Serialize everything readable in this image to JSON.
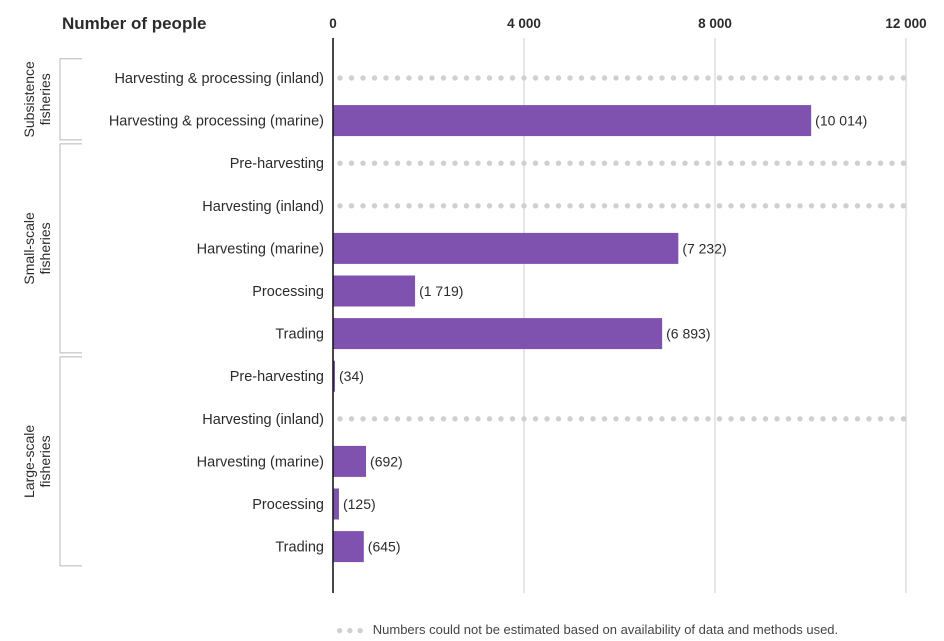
{
  "chart_data": {
    "type": "bar",
    "orientation": "horizontal",
    "x_axis_title": "Number of people",
    "x_ticks": [
      0,
      4000,
      8000,
      12000
    ],
    "x_tick_labels": [
      "0",
      "4 000",
      "8 000",
      "12 000"
    ],
    "xlim": [
      0,
      12000
    ],
    "grid": true,
    "bar_color": "#7E52AE",
    "missing_color": "#D0D0D0",
    "groups": [
      {
        "label": [
          "Subsistence",
          "fisheries"
        ],
        "items": [
          {
            "category": "Harvesting & processing (inland)",
            "value": null,
            "value_label": ""
          },
          {
            "category": "Harvesting & processing (marine)",
            "value": 10014,
            "value_label": "(10 014)"
          }
        ]
      },
      {
        "label": [
          "Small-scale",
          "fisheries"
        ],
        "items": [
          {
            "category": "Pre-harvesting",
            "value": null,
            "value_label": ""
          },
          {
            "category": "Harvesting (inland)",
            "value": null,
            "value_label": ""
          },
          {
            "category": "Harvesting (marine)",
            "value": 7232,
            "value_label": "(7 232)"
          },
          {
            "category": "Processing",
            "value": 1719,
            "value_label": "(1 719)"
          },
          {
            "category": "Trading",
            "value": 6893,
            "value_label": "(6 893)"
          }
        ]
      },
      {
        "label": [
          "Large-scale",
          "fisheries"
        ],
        "items": [
          {
            "category": "Pre-harvesting",
            "value": 34,
            "value_label": "(34)"
          },
          {
            "category": "Harvesting (inland)",
            "value": null,
            "value_label": ""
          },
          {
            "category": "Harvesting (marine)",
            "value": 692,
            "value_label": "(692)"
          },
          {
            "category": "Processing",
            "value": 125,
            "value_label": "(125)"
          },
          {
            "category": "Trading",
            "value": 645,
            "value_label": "(645)"
          }
        ]
      }
    ],
    "legend_note": "Numbers could not be estimated based on availability of data and methods used."
  }
}
